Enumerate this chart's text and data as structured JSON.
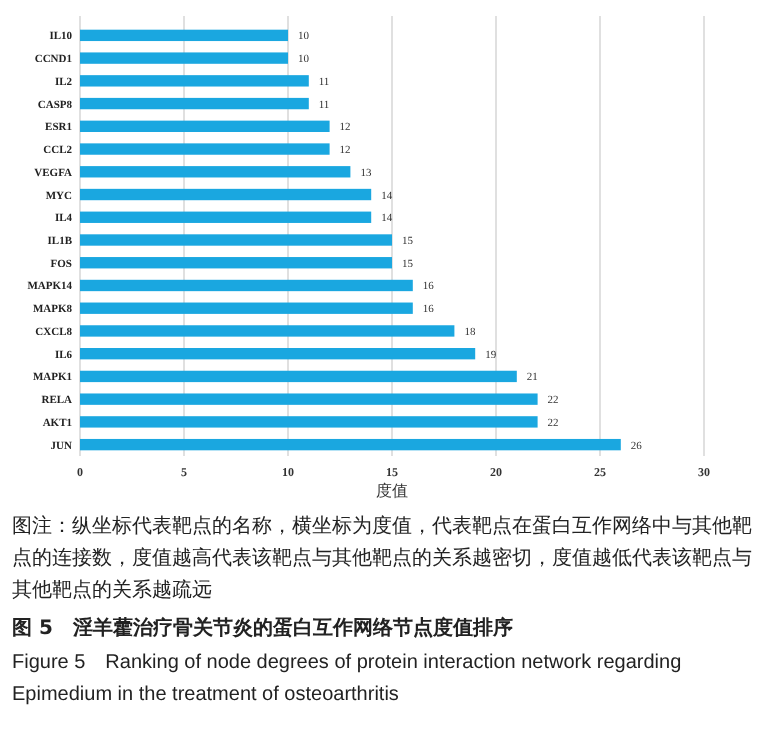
{
  "chart_data": {
    "type": "bar",
    "orientation": "horizontal",
    "title": "图 5　淫羊藿治疗骨关节炎的蛋白互作网络节点度值排序",
    "subtitle": "Figure 5　Ranking of node degrees of protein interaction network regarding Epimedium in the treatment of osteoarthritis",
    "xlabel": "度值",
    "annotations": [
      "图注：纵坐标代表靶点的名称，横坐标为度值，代表靶点在蛋白互作网络中与其他靶点的连接数，度值越高代表该靶点与其他靶点的关系越密切，度值越低代表该靶点与其他靶点的关系越疏远"
    ],
    "categories": [
      "IL10",
      "CCND1",
      "IL2",
      "CASP8",
      "ESR1",
      "CCL2",
      "VEGFA",
      "MYC",
      "IL4",
      "IL1B",
      "FOS",
      "MAPK14",
      "MAPK8",
      "CXCL8",
      "IL6",
      "MAPK1",
      "RELA",
      "AKT1",
      "JUN"
    ],
    "values": [
      10,
      10,
      11,
      11,
      12,
      12,
      13,
      14,
      14,
      15,
      15,
      16,
      16,
      18,
      19,
      21,
      22,
      22,
      26
    ],
    "color": "#1aa7e0",
    "xlim": [
      0,
      30
    ],
    "xticks": [
      0,
      5,
      10,
      15,
      20,
      25,
      30
    ],
    "grid": "x",
    "data_labels": true
  }
}
